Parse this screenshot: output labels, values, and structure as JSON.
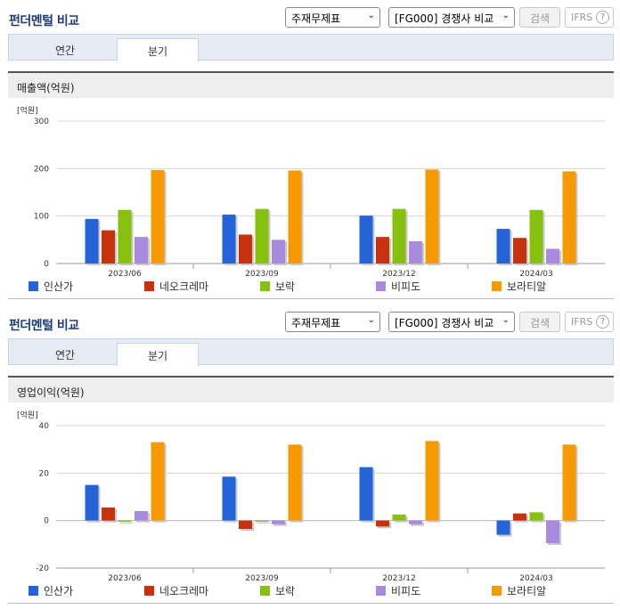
{
  "panels": [
    {
      "title": "펀더멘털 비교",
      "select1": "주재무제표",
      "select2": "[FG000] 경쟁사 비교",
      "search_label": "검색",
      "ifrs_label": "IFRS",
      "help_label": "?",
      "tabs": [
        "연간",
        "분기"
      ],
      "active_tab": "분기",
      "section_title": "매출액(억원)",
      "unit_label": "[억원]"
    },
    {
      "title": "펀더멘털 비교",
      "select1": "주재무제표",
      "select2": "[FG000] 경쟁사 비교",
      "search_label": "검색",
      "ifrs_label": "IFRS",
      "help_label": "?",
      "tabs": [
        "연간",
        "분기"
      ],
      "active_tab": "분기",
      "section_title": "영업이익(억원)",
      "unit_label": "[억원]"
    }
  ],
  "chart_data": [
    {
      "type": "bar",
      "title": "매출액(억원)",
      "ylabel": "[억원]",
      "categories": [
        "2023/06",
        "2023/09",
        "2023/12",
        "2024/03"
      ],
      "ylim": [
        0,
        300
      ],
      "yticks": [
        0,
        100,
        200,
        300
      ],
      "legend_position": "bottom",
      "series": [
        {
          "name": "인산가",
          "color": "#2464d8",
          "values": [
            94,
            103,
            101,
            73
          ]
        },
        {
          "name": "네오크레마",
          "color": "#c8310e",
          "values": [
            70,
            61,
            56,
            54
          ]
        },
        {
          "name": "보락",
          "color": "#88c010",
          "values": [
            113,
            115,
            115,
            113
          ]
        },
        {
          "name": "비피도",
          "color": "#a88ae0",
          "values": [
            56,
            50,
            47,
            31
          ]
        },
        {
          "name": "보라티알",
          "color": "#f59a00",
          "values": [
            197,
            196,
            198,
            194
          ]
        }
      ]
    },
    {
      "type": "bar",
      "title": "영업이익(억원)",
      "ylabel": "[억원]",
      "categories": [
        "2023/06",
        "2023/09",
        "2023/12",
        "2024/03"
      ],
      "ylim": [
        -20,
        40
      ],
      "yticks": [
        -20,
        0,
        20,
        40
      ],
      "legend_position": "bottom",
      "series": [
        {
          "name": "인산가",
          "color": "#2464d8",
          "values": [
            15,
            18.5,
            22.5,
            -6
          ]
        },
        {
          "name": "네오크레마",
          "color": "#c8310e",
          "values": [
            5.5,
            -3.5,
            -2.5,
            3
          ]
        },
        {
          "name": "보락",
          "color": "#88c010",
          "values": [
            -0.5,
            -0.5,
            2.5,
            3.5
          ]
        },
        {
          "name": "비피도",
          "color": "#a88ae0",
          "values": [
            4,
            -1.5,
            -1.5,
            -9.5
          ]
        },
        {
          "name": "보라티알",
          "color": "#f59a00",
          "values": [
            33,
            32,
            33.5,
            32
          ]
        }
      ]
    }
  ]
}
